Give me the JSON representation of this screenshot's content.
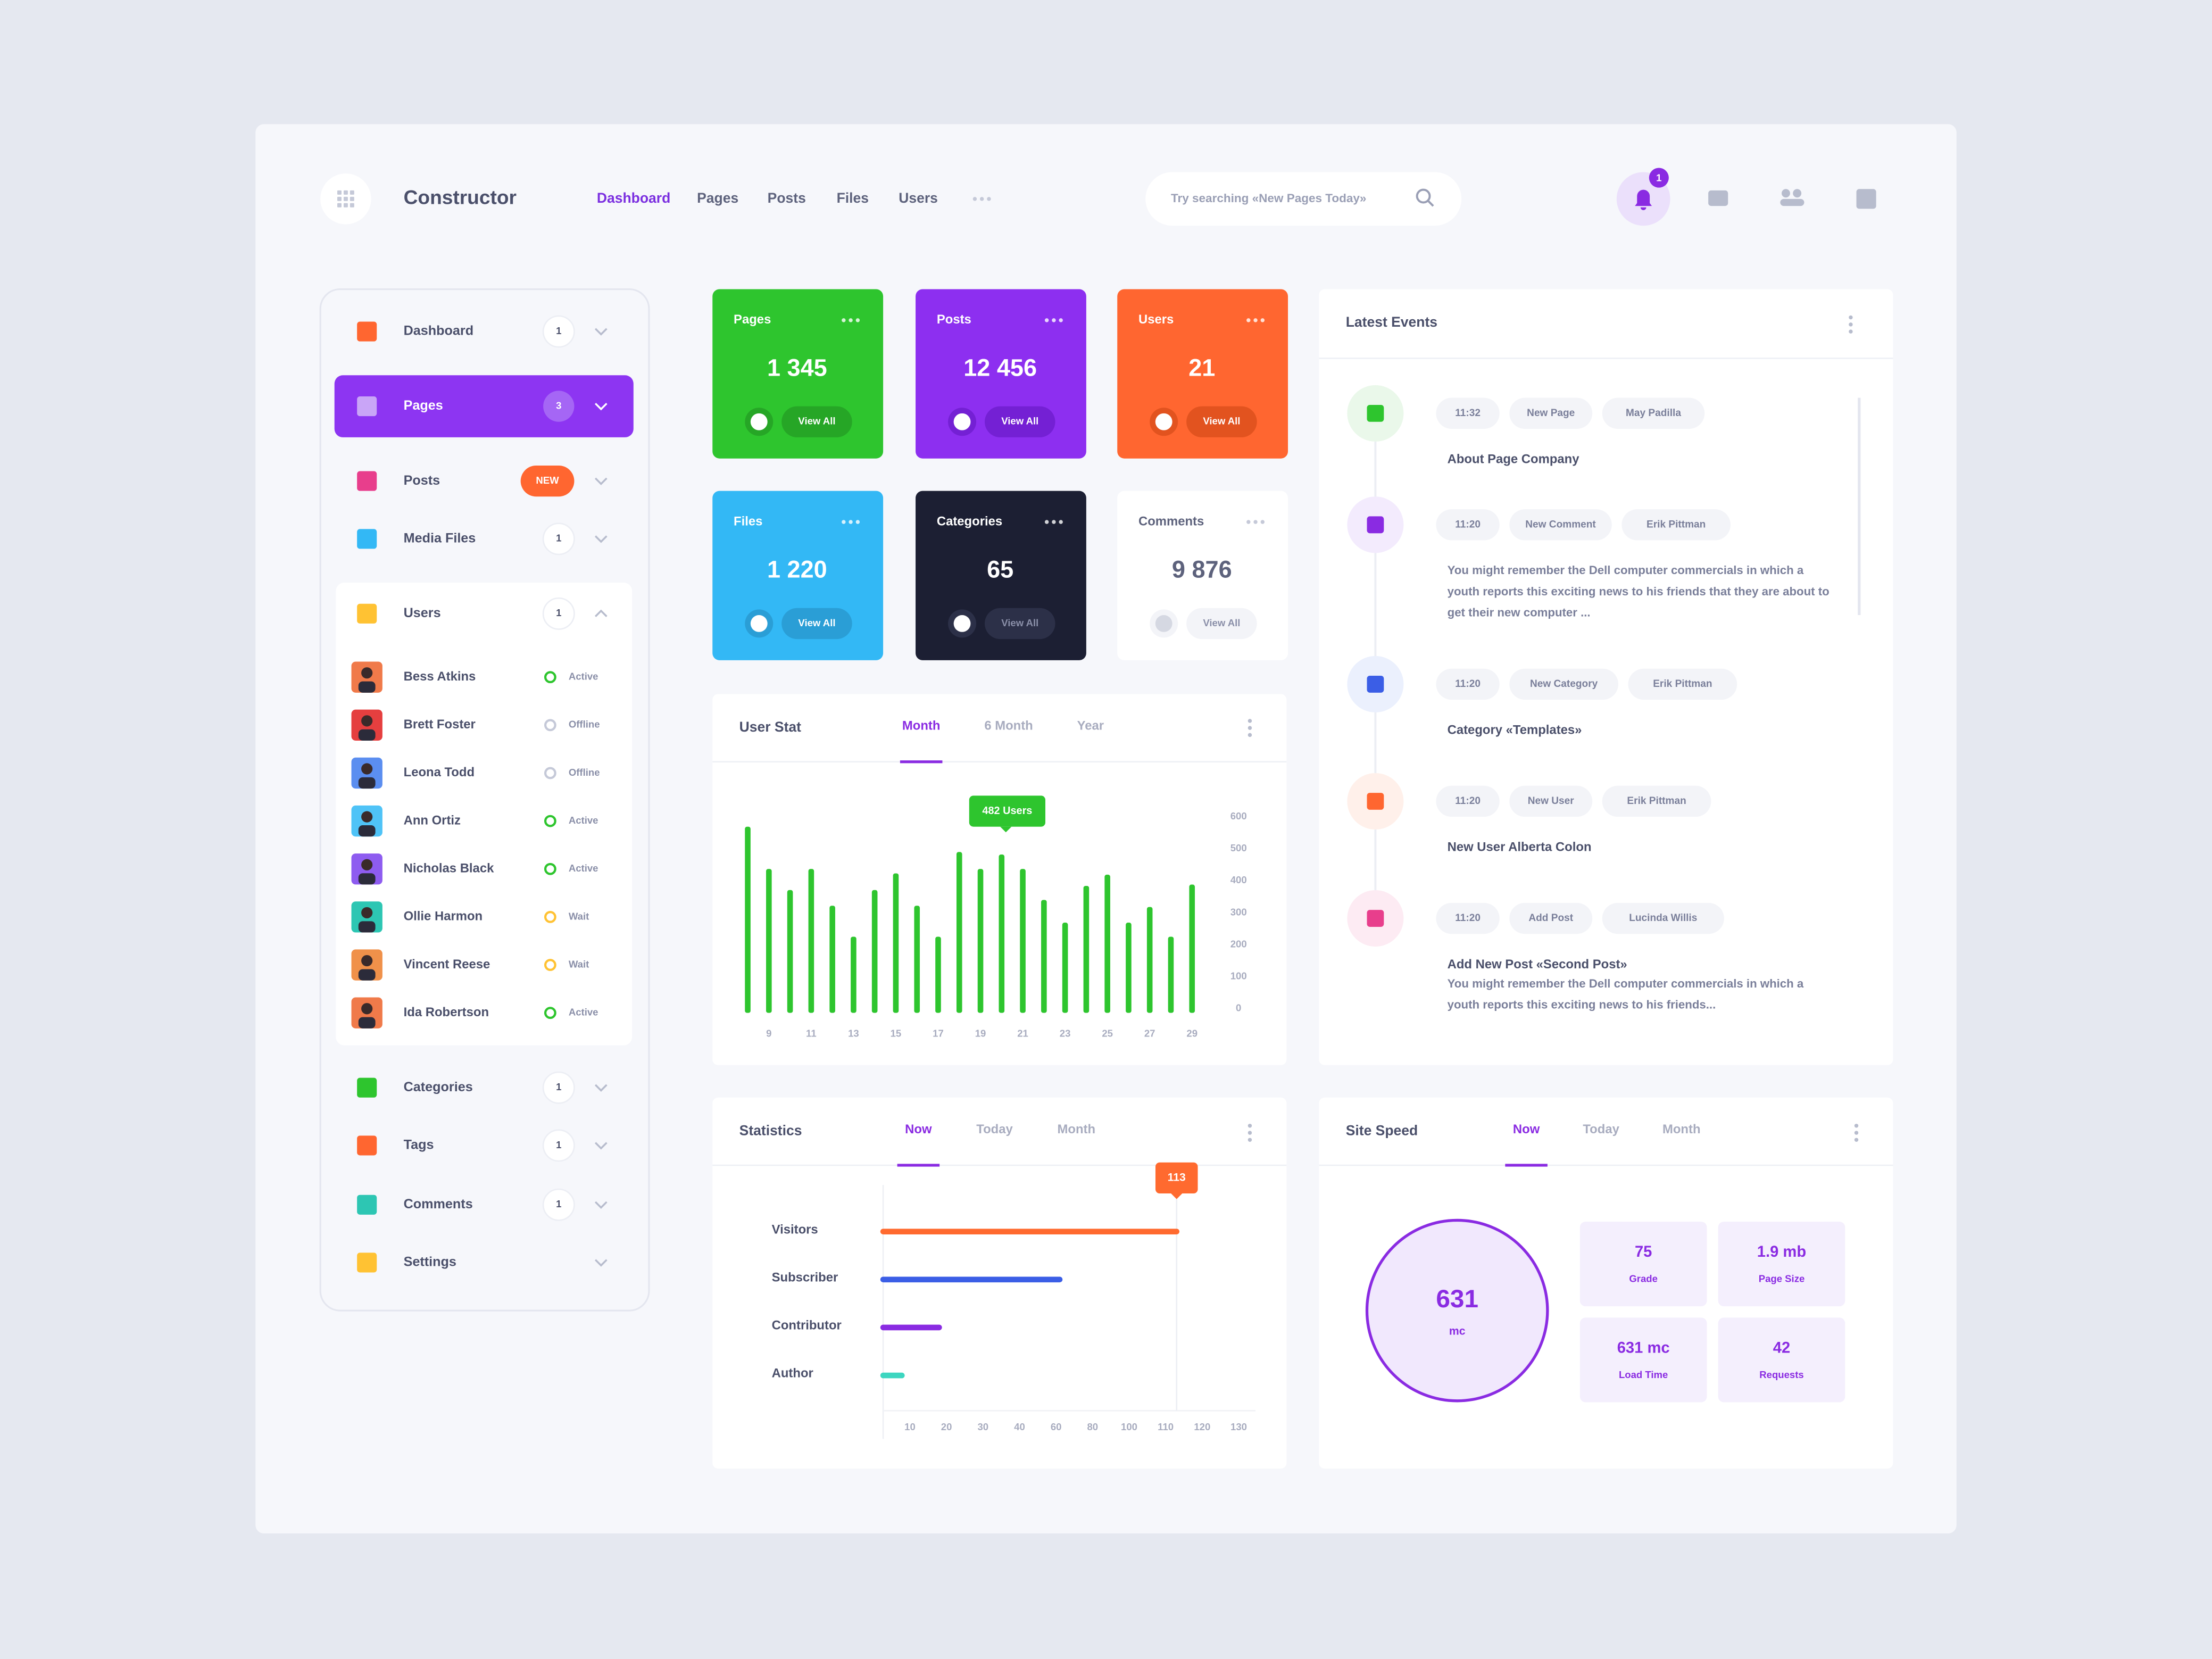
{
  "header": {
    "logo": "Constructor",
    "nav": [
      "Dashboard",
      "Pages",
      "Posts",
      "Files",
      "Users"
    ],
    "search": "Try searching «New Pages Today»",
    "notifications": "1"
  },
  "sidebar": {
    "items": [
      {
        "label": "Dashboard",
        "badge": "1"
      },
      {
        "label": "Pages",
        "badge": "3"
      },
      {
        "label": "Posts",
        "badge": "NEW"
      },
      {
        "label": "Media Files",
        "badge": "1"
      },
      {
        "label": "Users",
        "badge": "1"
      },
      {
        "label": "Categories",
        "badge": "1"
      },
      {
        "label": "Tags",
        "badge": "1"
      },
      {
        "label": "Comments",
        "badge": "1"
      },
      {
        "label": "Settings"
      }
    ],
    "users": [
      {
        "name": "Bess Atkins",
        "status": "Active"
      },
      {
        "name": "Brett Foster",
        "status": "Offline"
      },
      {
        "name": "Leona Todd",
        "status": "Offline"
      },
      {
        "name": "Ann Ortiz",
        "status": "Active"
      },
      {
        "name": "Nicholas Black",
        "status": "Active"
      },
      {
        "name": "Ollie Harmon",
        "status": "Wait"
      },
      {
        "name": "Vincent Reese",
        "status": "Wait"
      },
      {
        "name": "Ida Robertson",
        "status": "Active"
      }
    ]
  },
  "cards": [
    {
      "title": "Pages",
      "value": "1 345",
      "action": "View All"
    },
    {
      "title": "Posts",
      "value": "12 456",
      "action": "View All"
    },
    {
      "title": "Users",
      "value": "21",
      "action": "View All"
    },
    {
      "title": "Files",
      "value": "1 220",
      "action": "View All"
    },
    {
      "title": "Categories",
      "value": "65",
      "action": "View All"
    },
    {
      "title": "Comments",
      "value": "9 876",
      "action": "View All"
    }
  ],
  "chart_data": [
    {
      "type": "bar",
      "title": "User Stat",
      "tabs": [
        "Month",
        "6 Month",
        "Year"
      ],
      "categories": [
        null,
        "9",
        null,
        "11",
        null,
        "13",
        null,
        "15",
        null,
        "17",
        null,
        "19",
        null,
        "21",
        null,
        "23",
        null,
        "25",
        null,
        "27",
        null,
        "29"
      ],
      "values": [
        569,
        437,
        371,
        437,
        322,
        225,
        371,
        423,
        322,
        225,
        490,
        437,
        482,
        437,
        340,
        269,
        384,
        419,
        269,
        318,
        225,
        388
      ],
      "color": "#2ec52e",
      "ylim": [
        0,
        600
      ],
      "yticks": [
        0,
        100,
        200,
        300,
        400,
        500,
        600
      ],
      "annotation": "482 Users"
    },
    {
      "type": "barh",
      "title": "Statistics",
      "tabs": [
        "Now",
        "Today",
        "Month"
      ],
      "categories": [
        "Visitors",
        "Subscriber",
        "Contributor",
        "Author"
      ],
      "values": [
        113,
        62,
        18,
        7
      ],
      "colors": [
        "#ff6a2f",
        "#3b5ee6",
        "#8a2be2",
        "#3dd6c0"
      ],
      "xlim": [
        0,
        130
      ],
      "xticks": [
        10,
        20,
        30,
        40,
        60,
        80,
        100,
        110,
        120,
        130
      ]
    }
  ],
  "events": {
    "title": "Latest Events",
    "items": [
      {
        "time": "11:32",
        "type": "New Page",
        "user": "May Padilla",
        "title": "About Page Company"
      },
      {
        "time": "11:20",
        "type": "New Comment",
        "user": "Erik Pittman",
        "text": "You might remember the Dell computer commercials in which a youth reports this exciting news to his friends that they are about to get their new computer ..."
      },
      {
        "time": "11:20",
        "type": "New Category",
        "user": "Erik Pittman",
        "title": "Category «Templates»"
      },
      {
        "time": "11:20",
        "type": "New User",
        "user": "Erik Pittman",
        "title": "New User Alberta Colon"
      },
      {
        "time": "11:20",
        "type": "Add Post",
        "user": "Lucinda Willis",
        "title": "Add New Post «Second Post»",
        "text": "You might remember the Dell computer commercials in which a youth reports this exciting news to his friends..."
      }
    ]
  },
  "site_speed": {
    "title": "Site Speed",
    "tabs": [
      "Now",
      "Today",
      "Month"
    ],
    "score": "631",
    "unit": "mc",
    "metrics": [
      {
        "value": "75",
        "label": "Grade"
      },
      {
        "value": "1.9 mb",
        "label": "Page Size"
      },
      {
        "value": "631 mc",
        "label": "Load Time"
      },
      {
        "value": "42",
        "label": "Requests"
      }
    ]
  }
}
